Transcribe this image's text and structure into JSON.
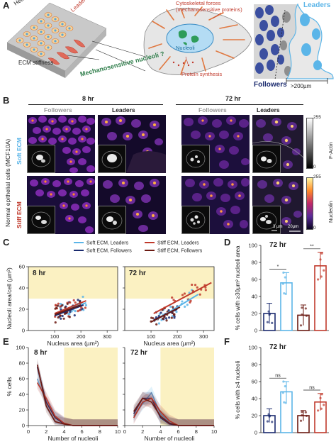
{
  "panels": {
    "A": "A",
    "B": "B",
    "C": "C",
    "D": "D",
    "E": "E",
    "F": "F"
  },
  "panelA": {
    "healthy_epithelial_cells": "Healthy Epithelial cells",
    "leader_cells": "Leader cells",
    "ecm_stiffness": "ECM stiffness",
    "mechanosensitive_nucleoli": "Mechanosensitive nucleoli ?",
    "cytoskeletal_forces": "Cytoskeletal forces",
    "mechanosensitive_proteins": "(mechanosensitive proteins)",
    "nucleoli": "Nucleoli",
    "protein_synthesis": "Protein synthesis",
    "leaders": "Leaders",
    "followers": "Followers",
    "distance": ">200µm"
  },
  "panelB": {
    "time_8": "8 hr",
    "time_72": "72 hr",
    "followers": "Followers",
    "leaders": "Leaders",
    "row_title": "Normal epithelial cells (MCF10A)",
    "soft": "Soft ECM",
    "stiff": "Stiff ECM",
    "colorbar_top": "F-Actin",
    "colorbar_bottom": "Nucleolin",
    "cb1_max": "255",
    "cb1_min": "0",
    "cb2_max": "255",
    "cb2_min": "0",
    "scale_small": "3 µm",
    "scale_big": "20µm"
  },
  "legend": [
    {
      "name": "Soft ECM, Leaders",
      "color": "#5bb5e8"
    },
    {
      "name": "Soft ECM, Followers",
      "color": "#1a2a6e"
    },
    {
      "name": "Stiff ECM, Leaders",
      "color": "#c0392b"
    },
    {
      "name": "Stiff ECM, Followers",
      "color": "#6b1a12"
    }
  ],
  "colors": {
    "soft_leader": "#5bb5e8",
    "soft_follower": "#1a2a6e",
    "stiff_leader": "#c0392b",
    "stiff_follower": "#6b1a12",
    "highlight": "#fbf1c2"
  },
  "chart_data": [
    {
      "id": "C-8hr",
      "type": "scatter",
      "title": "8 hr",
      "xlabel": "Nucleus area (µm²)",
      "ylabel": "Nucleoli area/cell (µm²)",
      "xlim": [
        0,
        340
      ],
      "ylim": [
        0,
        60
      ],
      "xticks": [
        100,
        200,
        300
      ],
      "yticks": [
        0,
        20,
        40,
        60
      ],
      "highlight_y_min": 30,
      "series": [
        {
          "name": "Soft ECM, Leaders",
          "fit": [
            [
              110,
              17
            ],
            [
              220,
              26
            ]
          ]
        },
        {
          "name": "Soft ECM, Followers",
          "fit": [
            [
              100,
              14
            ],
            [
              210,
              24
            ]
          ]
        },
        {
          "name": "Stiff ECM, Leaders",
          "fit": [
            [
              100,
              16
            ],
            [
              220,
              28
            ]
          ]
        },
        {
          "name": "Stiff ECM, Followers",
          "fit": [
            [
              100,
              15
            ],
            [
              200,
              24
            ]
          ]
        }
      ]
    },
    {
      "id": "C-72hr",
      "type": "scatter",
      "title": "72 hr",
      "xlabel": "Nucleus area (µm²)",
      "ylabel": "",
      "xlim": [
        0,
        340
      ],
      "ylim": [
        0,
        60
      ],
      "xticks": [
        100,
        200,
        300
      ],
      "yticks": [
        0,
        20,
        40,
        60
      ],
      "highlight_y_min": 30,
      "series": [
        {
          "name": "Soft ECM, Leaders",
          "fit": [
            [
              120,
              10
            ],
            [
              280,
              34
            ]
          ]
        },
        {
          "name": "Soft ECM, Followers",
          "fit": [
            [
              110,
              10
            ],
            [
              200,
              20
            ]
          ]
        },
        {
          "name": "Stiff ECM, Leaders",
          "fit": [
            [
              110,
              16
            ],
            [
              330,
              45
            ]
          ]
        },
        {
          "name": "Stiff ECM, Followers",
          "fit": [
            [
              100,
              8
            ],
            [
              210,
              22
            ]
          ]
        }
      ]
    },
    {
      "id": "D",
      "type": "bar",
      "title": "72 hr",
      "ylabel": "% cells with ≥30µm² nucleoli area",
      "ylim": [
        0,
        100
      ],
      "yticks": [
        0,
        20,
        40,
        60,
        80,
        100
      ],
      "categories": [
        "Soft ECM, Followers",
        "Soft ECM, Leaders",
        "Stiff ECM, Followers",
        "Stiff ECM, Leaders"
      ],
      "values": [
        20,
        56,
        18,
        76
      ],
      "errors": [
        12,
        12,
        12,
        16
      ],
      "significance": [
        {
          "pair": [
            0,
            1
          ],
          "label": "*"
        },
        {
          "pair": [
            2,
            3
          ],
          "label": "**"
        }
      ]
    },
    {
      "id": "E-8hr",
      "type": "line",
      "title": "8 hr",
      "xlabel": "Number of nucleoli",
      "ylabel": "% cells",
      "xlim": [
        0,
        10
      ],
      "ylim": [
        0,
        100
      ],
      "xticks": [
        0,
        2,
        4,
        6,
        8,
        10
      ],
      "yticks": [
        0,
        20,
        40,
        60,
        80,
        100
      ],
      "highlight_x_min": 4,
      "x": [
        1,
        2,
        3,
        4,
        5,
        6,
        7,
        8,
        9,
        10
      ],
      "series": [
        {
          "name": "Soft ECM, Leaders",
          "values": [
            60,
            30,
            10,
            3,
            0,
            0,
            0,
            0,
            0,
            0
          ]
        },
        {
          "name": "Soft ECM, Followers",
          "values": [
            75,
            30,
            10,
            2,
            0,
            0,
            0,
            0,
            0,
            0
          ]
        },
        {
          "name": "Stiff ECM, Leaders",
          "values": [
            55,
            35,
            12,
            3,
            0,
            0,
            0,
            0,
            0,
            0
          ]
        },
        {
          "name": "Stiff ECM, Followers",
          "values": [
            78,
            25,
            5,
            2,
            0,
            0,
            0,
            0,
            0,
            0
          ]
        }
      ]
    },
    {
      "id": "E-72hr",
      "type": "line",
      "title": "72 hr",
      "xlabel": "Number of nucleoli",
      "ylabel": "",
      "xlim": [
        0,
        10
      ],
      "ylim": [
        0,
        100
      ],
      "xticks": [
        0,
        2,
        4,
        6,
        8,
        10
      ],
      "yticks": [
        0,
        20,
        40,
        60,
        80,
        100
      ],
      "highlight_x_min": 4,
      "x": [
        1,
        2,
        3,
        4,
        5,
        6,
        7,
        8,
        9,
        10
      ],
      "series": [
        {
          "name": "Soft ECM, Leaders",
          "values": [
            12,
            28,
            42,
            15,
            4,
            0,
            0,
            0,
            0,
            0
          ]
        },
        {
          "name": "Soft ECM, Followers",
          "values": [
            15,
            35,
            35,
            10,
            2,
            0,
            0,
            0,
            0,
            0
          ]
        },
        {
          "name": "Stiff ECM, Leaders",
          "values": [
            10,
            30,
            35,
            18,
            6,
            0,
            0,
            0,
            0,
            0
          ]
        },
        {
          "name": "Stiff ECM, Followers",
          "values": [
            18,
            35,
            30,
            12,
            3,
            0,
            0,
            0,
            0,
            0
          ]
        }
      ]
    },
    {
      "id": "F",
      "type": "bar",
      "title": "72 hr",
      "ylabel": "% cells with ≥4 nucleoli",
      "ylim": [
        0,
        100
      ],
      "yticks": [
        0,
        20,
        40,
        60,
        80,
        100
      ],
      "categories": [
        "Soft ECM, Followers",
        "Soft ECM, Leaders",
        "Stiff ECM, Followers",
        "Stiff ECM, Leaders"
      ],
      "values": [
        20,
        48,
        20,
        36
      ],
      "errors": [
        8,
        12,
        6,
        10
      ],
      "significance": [
        {
          "pair": [
            0,
            1
          ],
          "label": "ns"
        },
        {
          "pair": [
            2,
            3
          ],
          "label": "ns"
        }
      ]
    }
  ]
}
